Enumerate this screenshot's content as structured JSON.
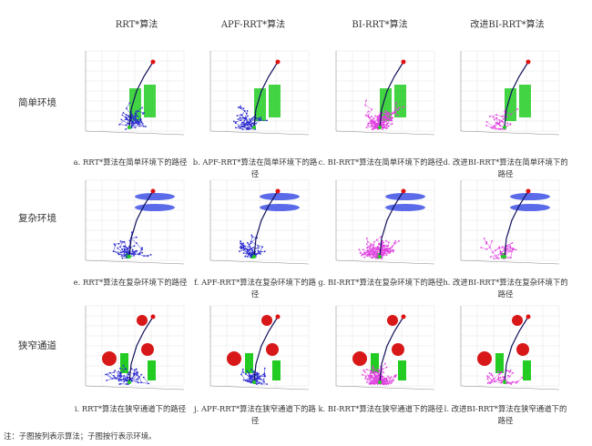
{
  "columns": [
    "RRT*算法",
    "APF-RRT*算法",
    "BI-RRT*算法",
    "改进BI-RRT*算法"
  ],
  "rows": [
    "简单环境",
    "复杂环境",
    "狭窄通道"
  ],
  "captions": [
    "a. RRT*算法在简单环境下的路径",
    "b. APF-RRT*算法在简单环境下的路径",
    "c. BI-RRT*算法在简单环境下的路径",
    "d. 改进BI-RRT*算法在简单环境下的路径",
    "e. RRT*算法在复杂环境下的路径",
    "f. APF-RRT*算法在复杂环境下的路径",
    "g. BI-RRT*算法在复杂环境下的路径",
    "h. 改进BI-RRT*算法在复杂环境下的路径",
    "i. RRT*算法在狭窄通道下的路径",
    "j. APF-RRT*算法在狭窄通道下的路径",
    "k. BI-RRT*算法在狭窄通道下的路径",
    "l. 改进BI-RRT*算法在狭窄通道下的路径"
  ],
  "note": "注：子图按列表示算法；子图按行表示环境。",
  "colors": {
    "tree_blue": "#2a2ad0",
    "tree_magenta": "#e040e0",
    "obstacle_green": "#22cc22",
    "obstacle_blue": "#5a6ae8",
    "sphere_red": "#d81818",
    "goal": "#e01010",
    "path": "#10105a"
  }
}
